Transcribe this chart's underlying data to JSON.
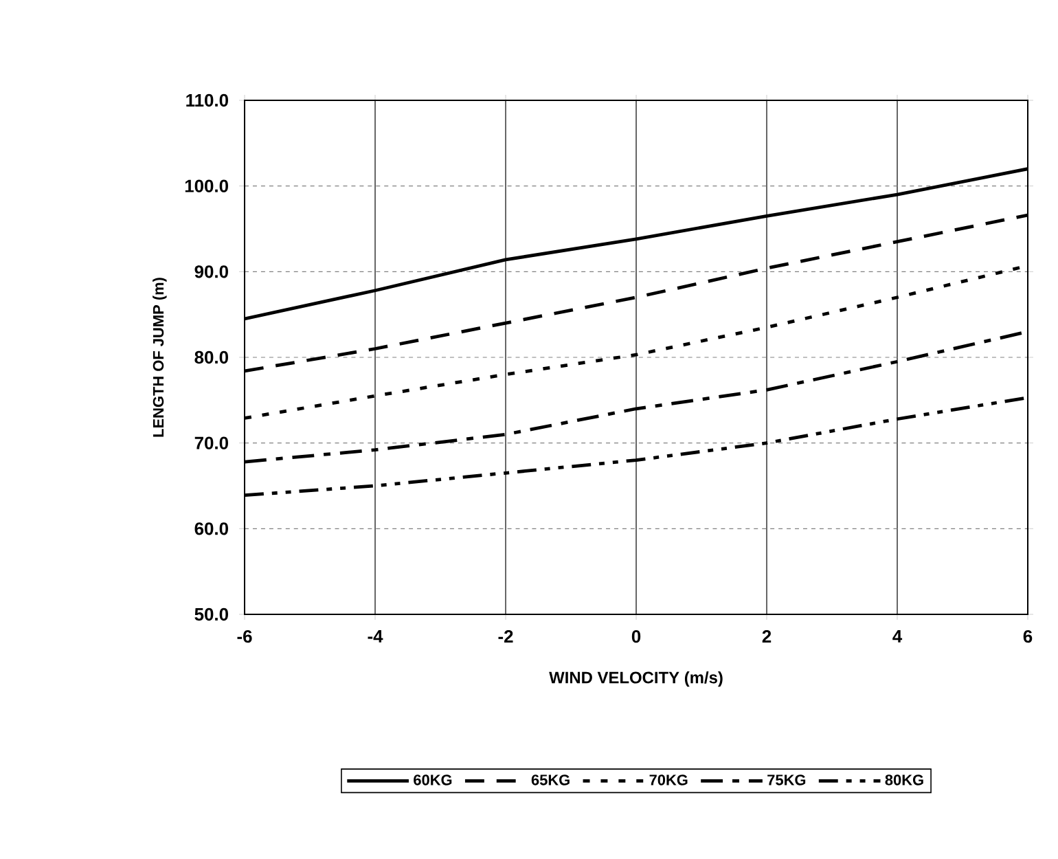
{
  "chart_data": {
    "type": "line",
    "xlabel": "WIND VELOCITY (m/s)",
    "ylabel": "LENGTH OF JUMP (m)",
    "x": [
      -6,
      -4,
      -2,
      0,
      2,
      4,
      6
    ],
    "xlim": [
      -6,
      6
    ],
    "xticks": [
      -6,
      -4,
      -2,
      0,
      2,
      4,
      6
    ],
    "ylim": [
      50,
      110
    ],
    "yticks": [
      {
        "value": 50,
        "label": "50.0"
      },
      {
        "value": 60,
        "label": "60.0"
      },
      {
        "value": 70,
        "label": "70.0"
      },
      {
        "value": 80,
        "label": "80.0"
      },
      {
        "value": 90,
        "label": "90.0"
      },
      {
        "value": 100,
        "label": "100.0"
      },
      {
        "value": 110,
        "label": "110.0"
      }
    ],
    "grid": true,
    "legend": "bottom",
    "marker": "none",
    "series": [
      {
        "name": "60KG",
        "color": "#000000",
        "line_style": "solid",
        "values": [
          84.5,
          87.8,
          91.4,
          93.8,
          96.5,
          99,
          102
        ]
      },
      {
        "name": "65KG",
        "color": "#000000",
        "line_style": "dashed",
        "values": [
          78.4,
          81,
          84,
          87,
          90.4,
          93.5,
          96.6
        ]
      },
      {
        "name": "70KG",
        "color": "#000000",
        "line_style": "dotted",
        "values": [
          72.9,
          75.5,
          78,
          80.3,
          83.5,
          87,
          90.7
        ]
      },
      {
        "name": "75KG",
        "color": "#000000",
        "line_style": "dashdot",
        "values": [
          67.8,
          69.2,
          71,
          74,
          76.2,
          79.5,
          83
        ]
      },
      {
        "name": "80KG",
        "color": "#000000",
        "line_style": "dashdotdot",
        "values": [
          63.9,
          65,
          66.5,
          68,
          70,
          72.8,
          75.3
        ]
      }
    ]
  }
}
